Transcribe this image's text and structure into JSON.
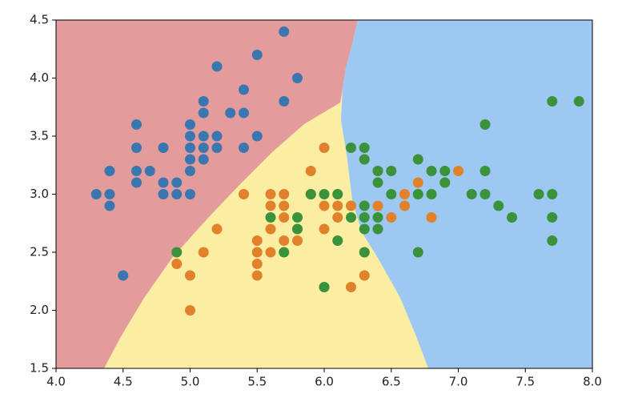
{
  "chart_data": {
    "type": "scatter",
    "xlim": [
      4,
      8
    ],
    "ylim": [
      1.5,
      4.5
    ],
    "xticks": [
      {
        "value": 4,
        "label": "4.0"
      },
      4.5,
      {
        "value": 5,
        "label": "5.0"
      },
      5.5,
      {
        "value": 6,
        "label": "6.0"
      },
      6.5,
      {
        "value": 7,
        "label": "7.0"
      },
      7.5,
      {
        "value": 8,
        "label": "8.0"
      }
    ],
    "yticks": [
      1.5,
      {
        "value": 2,
        "label": "2.0"
      },
      2.5,
      {
        "value": 3,
        "label": "3.0"
      },
      3.5,
      {
        "value": 4,
        "label": "4.0"
      },
      4.5
    ],
    "series": [
      {
        "color": "#3a76af",
        "x": [
          5.1,
          4.9,
          4.7,
          4.6,
          5.0,
          5.4,
          4.6,
          5.0,
          4.4,
          4.9,
          5.4,
          4.8,
          4.8,
          4.3,
          5.8,
          5.7,
          5.7,
          5.1,
          5.4,
          5.1,
          4.6,
          5.1,
          5.0,
          5.2,
          5.2,
          4.8,
          5.2,
          5.5,
          5.0,
          5.5,
          4.4,
          5.1,
          4.5,
          4.4,
          4.6,
          5.3,
          5.0,
          5.0
        ],
        "values": [
          3.5,
          3.0,
          3.2,
          3.1,
          3.6,
          3.9,
          3.4,
          3.4,
          2.9,
          3.1,
          3.7,
          3.4,
          3.0,
          3.0,
          4.0,
          4.4,
          3.8,
          3.8,
          3.4,
          3.7,
          3.6,
          3.3,
          3.0,
          3.5,
          3.4,
          3.1,
          4.1,
          4.2,
          3.2,
          3.5,
          3.0,
          3.4,
          2.3,
          3.2,
          3.2,
          3.7,
          3.5,
          3.3
        ]
      },
      {
        "color": "#e1812c",
        "x": [
          7.0,
          6.4,
          6.9,
          5.5,
          6.5,
          5.7,
          6.3,
          4.9,
          6.6,
          5.2,
          5.0,
          5.9,
          6.0,
          6.1,
          5.6,
          6.7,
          5.6,
          5.8,
          6.2,
          5.6,
          5.9,
          6.1,
          6.3,
          6.4,
          6.6,
          6.8,
          6.7,
          6.0,
          5.7,
          5.5,
          6.0,
          5.4,
          6.0,
          6.3,
          5.5,
          5.5,
          6.1,
          5.8,
          5.0,
          5.6,
          5.7,
          5.7,
          6.2,
          5.1
        ],
        "values": [
          3.2,
          3.2,
          3.1,
          2.3,
          2.8,
          2.8,
          3.3,
          2.4,
          2.9,
          2.7,
          2.0,
          3.0,
          2.2,
          2.9,
          2.9,
          3.1,
          3.0,
          2.7,
          2.2,
          2.5,
          3.2,
          2.8,
          2.5,
          2.9,
          3.0,
          2.8,
          3.0,
          2.9,
          2.6,
          2.4,
          2.7,
          3.0,
          3.4,
          2.3,
          2.5,
          2.6,
          3.0,
          2.6,
          2.3,
          2.7,
          3.0,
          2.9,
          2.9,
          2.5
        ]
      },
      {
        "color": "#3a923a",
        "x": [
          6.3,
          5.8,
          7.1,
          6.3,
          6.5,
          7.6,
          4.9,
          7.3,
          6.7,
          7.2,
          6.5,
          6.4,
          6.8,
          5.7,
          5.8,
          6.4,
          7.7,
          7.7,
          6.0,
          6.9,
          5.6,
          7.7,
          6.3,
          6.7,
          7.2,
          6.2,
          6.1,
          6.4,
          7.2,
          7.4,
          7.9,
          6.3,
          6.1,
          7.7,
          6.3,
          6.4,
          6.0,
          6.9,
          6.8,
          6.7,
          6.3,
          6.2,
          5.9
        ],
        "values": [
          3.3,
          2.7,
          3.0,
          2.9,
          3.0,
          3.0,
          2.5,
          2.9,
          2.5,
          3.6,
          3.2,
          2.7,
          3.0,
          2.5,
          2.8,
          3.2,
          3.8,
          2.6,
          2.2,
          3.2,
          2.8,
          2.8,
          2.7,
          3.3,
          3.2,
          2.8,
          3.0,
          2.8,
          3.0,
          2.8,
          3.8,
          2.8,
          2.6,
          3.0,
          3.4,
          3.1,
          3.0,
          3.1,
          3.2,
          3.0,
          2.5,
          3.4,
          3.0
        ]
      }
    ]
  }
}
